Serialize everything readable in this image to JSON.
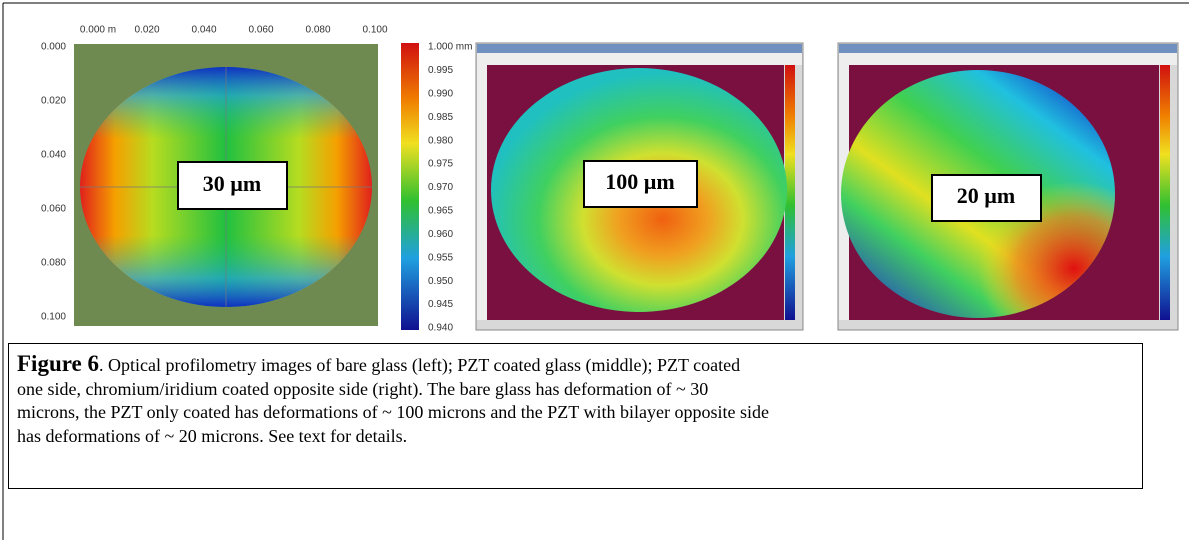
{
  "left_image": {
    "x_ticks": [
      "0.000 m",
      "0.020",
      "0.040",
      "0.060",
      "0.080",
      "0.100"
    ],
    "y_ticks": [
      "0.000",
      "0.020",
      "0.040",
      "0.060",
      "0.080",
      "0.100"
    ],
    "colorbar_ticks": [
      "1.000 mm",
      "0.995",
      "0.990",
      "0.985",
      "0.980",
      "0.975",
      "0.970",
      "0.965",
      "0.960",
      "0.955",
      "0.950",
      "0.945",
      "0.940"
    ],
    "label": "30 µm"
  },
  "middle_image": {
    "label": "100 µm"
  },
  "right_image": {
    "label": "20 µm"
  },
  "caption": {
    "label": "Figure 6",
    "lines": [
      ". Optical profilometry images of  bare glass (left); PZT coated glass (middle); PZT coated",
      "one side, chromium/iridium coated opposite side (right).  The bare glass has deformation of ~ 30",
      "microns, the PZT only coated has deformations of ~ 100 microns and the PZT with bilayer opposite side",
      "has deformations of ~ 20 microns. See text for details."
    ]
  }
}
